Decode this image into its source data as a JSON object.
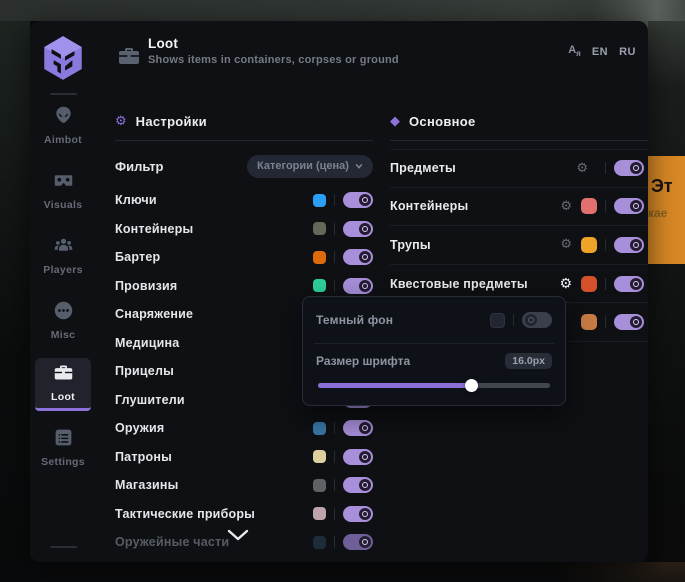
{
  "header": {
    "title": "Loot",
    "subtitle": "Shows items in containers, corpses or ground",
    "lang_en": "EN",
    "lang_ru": "RU",
    "translate_glyph": "A"
  },
  "sidebar": {
    "items": [
      {
        "label": "Aimbot",
        "icon": "alien",
        "active": false
      },
      {
        "label": "Visuals",
        "icon": "vr",
        "active": false
      },
      {
        "label": "Players",
        "icon": "players",
        "active": false
      },
      {
        "label": "Misc",
        "icon": "misc",
        "active": false
      },
      {
        "label": "Loot",
        "icon": "briefcase",
        "active": true
      },
      {
        "label": "Settings",
        "icon": "list",
        "active": false
      }
    ]
  },
  "settings_section": {
    "title": "Настройки",
    "filter_label": "Фильтр",
    "filter_value": "Категории (цена)",
    "items": [
      {
        "label": "Ключи",
        "color": "#2b9ff5",
        "on": true
      },
      {
        "label": "Контейнеры",
        "color": "#62685a",
        "on": true
      },
      {
        "label": "Бартер",
        "color": "#dd6b0d",
        "on": true
      },
      {
        "label": "Провизия",
        "color": "#2fcf9b",
        "on": true
      },
      {
        "label": "Снаряжение",
        "color": "#555a60",
        "on": true
      },
      {
        "label": "Медицина",
        "color": "#555a60",
        "on": true
      },
      {
        "label": "Прицелы",
        "color": "#555a60",
        "on": true
      },
      {
        "label": "Глушители",
        "color": "#555a60",
        "on": true
      },
      {
        "label": "Оружия",
        "color": "#3878a8",
        "on": true
      },
      {
        "label": "Патроны",
        "color": "#ddcf9e",
        "on": true
      },
      {
        "label": "Магазины",
        "color": "#5f6164",
        "on": true
      },
      {
        "label": "Тактические приборы",
        "color": "#bfa3ad",
        "on": true
      },
      {
        "label": "Оружейные части",
        "color": "#2a4458",
        "on": true,
        "faded": true
      }
    ]
  },
  "main_section": {
    "title": "Основное",
    "items": [
      {
        "label": "Предметы",
        "color": null,
        "on": true,
        "gear": true
      },
      {
        "label": "Контейнеры",
        "color": "#e2706f",
        "on": true,
        "gear": true
      },
      {
        "label": "Трупы",
        "color": "#eda428",
        "on": true,
        "gear": true
      },
      {
        "label": "Квестовые предметы",
        "color": "#d4512b",
        "on": true,
        "gear": true,
        "gear_active": true
      },
      {
        "label": "",
        "color": "#c97c44",
        "on": true,
        "gear": false
      }
    ]
  },
  "popup": {
    "dark_bg_label": "Темный фон",
    "dark_bg_swatch": "#232630",
    "dark_bg_enabled": false,
    "font_size_label": "Размер шрифта",
    "font_size_value": "16.0px",
    "slider_percent": 66
  },
  "background": {
    "banner_line1": "Эт",
    "banner_line2": "кае",
    "banner_color": "#d98926"
  },
  "colors": {
    "accent": "#8d72d9",
    "toggle_on": "#a78fd9",
    "panel": "#0e1014"
  }
}
